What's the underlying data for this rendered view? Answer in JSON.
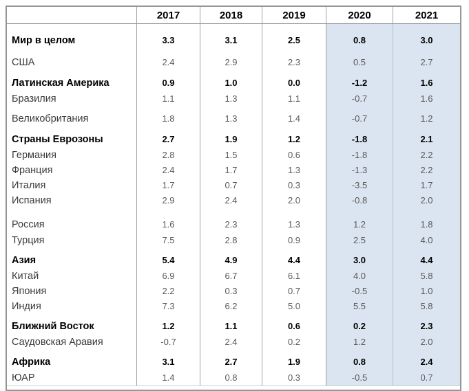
{
  "chart_data": {
    "type": "table",
    "title": "",
    "row_header_column": "",
    "columns": [
      "2017",
      "2018",
      "2019",
      "2020",
      "2021"
    ],
    "highlighted_columns": [
      "2020",
      "2021"
    ],
    "highlight_color": "#dbe5f1",
    "rows": [
      {
        "label": "Мир в целом",
        "bold": true,
        "separator_before": "none",
        "values": [
          3.3,
          3.1,
          2.5,
          0.8,
          3.0
        ]
      },
      {
        "label": "США",
        "bold": false,
        "separator_before": "small",
        "values": [
          2.4,
          2.9,
          2.3,
          0.5,
          2.7
        ]
      },
      {
        "label": "Латинская Америка",
        "bold": true,
        "separator_before": "small",
        "values": [
          0.9,
          1.0,
          0.0,
          -1.2,
          1.6
        ]
      },
      {
        "label": "Бразилия",
        "bold": false,
        "separator_before": "none",
        "values": [
          1.1,
          1.3,
          1.1,
          -0.7,
          1.6
        ]
      },
      {
        "label": "Великобритания",
        "bold": false,
        "separator_before": "small",
        "values": [
          1.8,
          1.3,
          1.4,
          -0.7,
          1.2
        ]
      },
      {
        "label": "Страны Еврозоны",
        "bold": true,
        "separator_before": "small",
        "values": [
          2.7,
          1.9,
          1.2,
          -1.8,
          2.1
        ]
      },
      {
        "label": "Германия",
        "bold": false,
        "separator_before": "none",
        "values": [
          2.8,
          1.5,
          0.6,
          -1.8,
          2.2
        ]
      },
      {
        "label": "Франция",
        "bold": false,
        "separator_before": "none",
        "values": [
          2.4,
          1.7,
          1.3,
          -1.3,
          2.2
        ]
      },
      {
        "label": "Италия",
        "bold": false,
        "separator_before": "none",
        "values": [
          1.7,
          0.7,
          0.3,
          -3.5,
          1.7
        ]
      },
      {
        "label": "Испания",
        "bold": false,
        "separator_before": "none",
        "values": [
          2.9,
          2.4,
          2.0,
          -0.8,
          2.0
        ]
      },
      {
        "label": "Россия",
        "bold": false,
        "separator_before": "large",
        "values": [
          1.6,
          2.3,
          1.3,
          1.2,
          1.8
        ]
      },
      {
        "label": "Турция",
        "bold": false,
        "separator_before": "none",
        "values": [
          7.5,
          2.8,
          0.9,
          2.5,
          4.0
        ]
      },
      {
        "label": "Азия",
        "bold": true,
        "separator_before": "small",
        "values": [
          5.4,
          4.9,
          4.4,
          3.0,
          4.4
        ]
      },
      {
        "label": "Китай",
        "bold": false,
        "separator_before": "none",
        "values": [
          6.9,
          6.7,
          6.1,
          4.0,
          5.8
        ]
      },
      {
        "label": "Япония",
        "bold": false,
        "separator_before": "none",
        "values": [
          2.2,
          0.3,
          0.7,
          -0.5,
          1.0
        ]
      },
      {
        "label": "Индия",
        "bold": false,
        "separator_before": "none",
        "values": [
          7.3,
          6.2,
          5.0,
          5.5,
          5.8
        ]
      },
      {
        "label": "Ближний Восток",
        "bold": true,
        "separator_before": "small",
        "values": [
          1.2,
          1.1,
          0.6,
          0.2,
          2.3
        ]
      },
      {
        "label": "Саудовская Аравия",
        "bold": false,
        "separator_before": "none",
        "values": [
          -0.7,
          2.4,
          0.2,
          1.2,
          2.0
        ]
      },
      {
        "label": "Африка",
        "bold": true,
        "separator_before": "small",
        "values": [
          3.1,
          2.7,
          1.9,
          0.8,
          2.4
        ]
      },
      {
        "label": "ЮАР",
        "bold": false,
        "separator_before": "none",
        "values": [
          1.4,
          0.8,
          0.3,
          -0.5,
          0.7
        ]
      }
    ]
  }
}
